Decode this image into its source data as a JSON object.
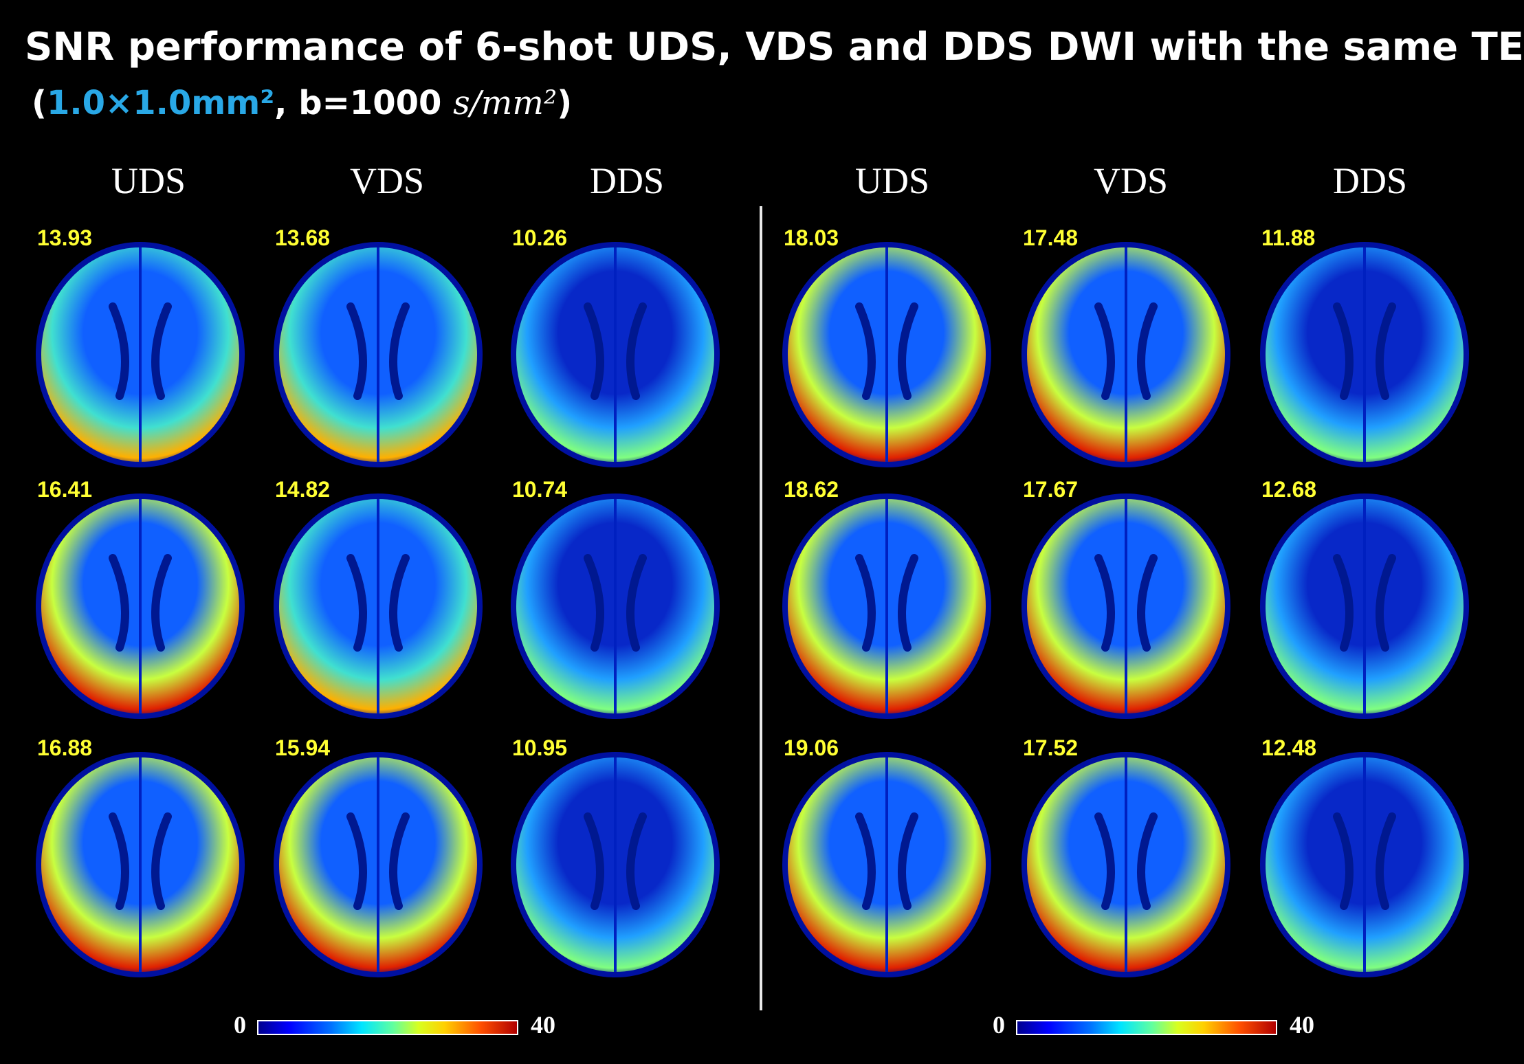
{
  "title": "SNR performance of 6-shot UDS, VDS and DDS DWI with the same TE",
  "subtitle": {
    "open": "(",
    "resolution": "1.0×1.0mm²",
    "sep": ", b=1000 ",
    "unit": "s/mm²",
    "close": ")"
  },
  "column_headers": [
    "UDS",
    "VDS",
    "DDS",
    "UDS",
    "VDS",
    "DDS"
  ],
  "snr_values": [
    [
      "13.93",
      "13.68",
      "10.26",
      "18.03",
      "17.48",
      "11.88"
    ],
    [
      "16.41",
      "14.82",
      "10.74",
      "18.62",
      "17.67",
      "12.68"
    ],
    [
      "16.88",
      "15.94",
      "10.95",
      "19.06",
      "17.52",
      "12.48"
    ]
  ],
  "colorbar": {
    "min": "0",
    "max": "40",
    "colormap": "jet"
  },
  "colors": {
    "title": "#ffffff",
    "highlight": "#29a8e6",
    "snr_label": "#ffff33",
    "background": "#000000"
  },
  "panels": [
    {
      "snr": 13.93,
      "scheme": "UDS"
    },
    {
      "snr": 13.68,
      "scheme": "VDS"
    },
    {
      "snr": 10.26,
      "scheme": "DDS"
    },
    {
      "snr": 18.03,
      "scheme": "UDS"
    },
    {
      "snr": 17.48,
      "scheme": "VDS"
    },
    {
      "snr": 11.88,
      "scheme": "DDS"
    },
    {
      "snr": 16.41,
      "scheme": "UDS"
    },
    {
      "snr": 14.82,
      "scheme": "VDS"
    },
    {
      "snr": 10.74,
      "scheme": "DDS"
    },
    {
      "snr": 18.62,
      "scheme": "UDS"
    },
    {
      "snr": 17.67,
      "scheme": "VDS"
    },
    {
      "snr": 12.68,
      "scheme": "DDS"
    },
    {
      "snr": 16.88,
      "scheme": "UDS"
    },
    {
      "snr": 15.94,
      "scheme": "VDS"
    },
    {
      "snr": 10.95,
      "scheme": "DDS"
    },
    {
      "snr": 19.06,
      "scheme": "UDS"
    },
    {
      "snr": 17.52,
      "scheme": "VDS"
    },
    {
      "snr": 12.48,
      "scheme": "DDS"
    }
  ]
}
